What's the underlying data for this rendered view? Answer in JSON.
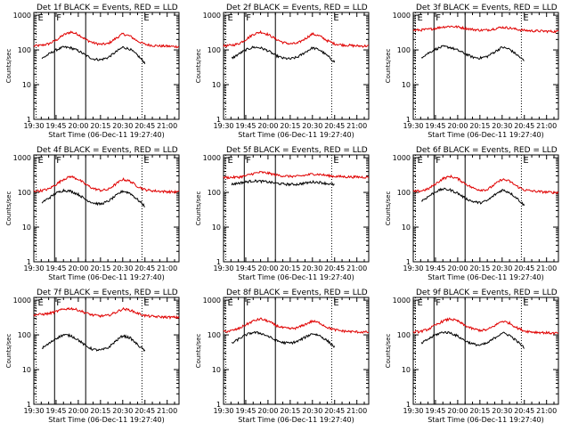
{
  "figure": {
    "colors": {
      "events": "#000000",
      "lld": "#e00000",
      "axes": "#000000",
      "background": "#ffffff"
    },
    "x_tick_labels": [
      "19:30",
      "19:45",
      "20:00",
      "20:15",
      "20:30",
      "20:45",
      "21:00"
    ],
    "x_tick_minutes": [
      0,
      15,
      30,
      45,
      60,
      75,
      90
    ],
    "x_range_minutes": [
      0,
      98
    ],
    "y_tick_labels": [
      "1",
      "10",
      "100",
      "1000"
    ],
    "y_tick_values": [
      1,
      10,
      100,
      1000
    ],
    "y_range": [
      1,
      1200
    ],
    "y_scale": "log",
    "ylabel": "Counts/sec",
    "xlabel": "Start Time (06-Dec-11 19:27:40)",
    "markers": [
      {
        "label": "E",
        "minute": 1.5,
        "style": "dotted"
      },
      {
        "label": "F",
        "minute": 14,
        "style": "solid"
      },
      {
        "label": "",
        "minute": 35,
        "style": "solid"
      },
      {
        "label": "E",
        "minute": 73,
        "style": "dotted"
      }
    ]
  },
  "chart_data": [
    {
      "type": "line",
      "title": "Det 1f BLACK = Events, RED = LLD",
      "ylabel": "Counts/sec",
      "xlabel": "Start Time (06-Dec-11 19:27:40)",
      "y_scale": "log",
      "ylim": [
        1,
        1200
      ],
      "x": [
        0,
        5,
        10,
        15,
        20,
        25,
        30,
        35,
        40,
        45,
        50,
        55,
        60,
        65,
        70,
        75,
        80,
        85,
        90,
        95,
        98
      ],
      "series": [
        {
          "name": "RED = LLD",
          "color": "#e00000",
          "values": [
            130,
            135,
            150,
            190,
            270,
            330,
            280,
            200,
            160,
            145,
            150,
            210,
            290,
            250,
            180,
            145,
            135,
            130,
            128,
            125,
            125
          ]
        },
        {
          "name": "BLACK = Events",
          "color": "#000000",
          "values": [
            null,
            55,
            75,
            100,
            120,
            115,
            95,
            70,
            55,
            52,
            60,
            85,
            120,
            105,
            70,
            42,
            null,
            null,
            null,
            null,
            null
          ]
        }
      ]
    },
    {
      "type": "line",
      "title": "Det 2f BLACK = Events, RED = LLD",
      "ylabel": "Counts/sec",
      "xlabel": "Start Time (06-Dec-11 19:27:40)",
      "y_scale": "log",
      "ylim": [
        1,
        1200
      ],
      "x": [
        0,
        5,
        10,
        15,
        20,
        25,
        30,
        35,
        40,
        45,
        50,
        55,
        60,
        65,
        70,
        75,
        80,
        85,
        90,
        95,
        98
      ],
      "series": [
        {
          "name": "RED = LLD",
          "color": "#e00000",
          "values": [
            130,
            135,
            150,
            200,
            280,
            330,
            280,
            210,
            165,
            150,
            155,
            210,
            290,
            250,
            185,
            150,
            140,
            135,
            130,
            130,
            130
          ]
        },
        {
          "name": "BLACK = Events",
          "color": "#000000",
          "values": [
            null,
            55,
            75,
            100,
            120,
            115,
            95,
            70,
            58,
            55,
            62,
            85,
            115,
            100,
            68,
            45,
            null,
            null,
            null,
            null,
            null
          ]
        }
      ]
    },
    {
      "type": "line",
      "title": "Det 3f BLACK = Events, RED = LLD",
      "ylabel": "Counts/sec",
      "xlabel": "Start Time (06-Dec-11 19:27:40)",
      "y_scale": "log",
      "ylim": [
        1,
        1200
      ],
      "x": [
        0,
        5,
        10,
        15,
        20,
        25,
        30,
        35,
        40,
        45,
        50,
        55,
        60,
        65,
        70,
        75,
        80,
        85,
        90,
        95,
        98
      ],
      "series": [
        {
          "name": "RED = LLD",
          "color": "#e00000",
          "values": [
            370,
            375,
            390,
            420,
            460,
            480,
            460,
            420,
            390,
            370,
            375,
            410,
            450,
            430,
            390,
            365,
            355,
            350,
            345,
            340,
            340
          ]
        },
        {
          "name": "BLACK = Events",
          "color": "#000000",
          "values": [
            null,
            60,
            80,
            105,
            125,
            118,
            98,
            78,
            62,
            58,
            65,
            88,
            120,
            105,
            72,
            48,
            null,
            null,
            null,
            null,
            null
          ]
        }
      ]
    },
    {
      "type": "line",
      "title": "Det 4f BLACK = Events, RED = LLD",
      "ylabel": "Counts/sec",
      "xlabel": "Start Time (06-Dec-11 19:27:40)",
      "y_scale": "log",
      "ylim": [
        1,
        1200
      ],
      "x": [
        0,
        5,
        10,
        15,
        20,
        25,
        30,
        35,
        40,
        45,
        50,
        55,
        60,
        65,
        70,
        75,
        80,
        85,
        90,
        95,
        98
      ],
      "series": [
        {
          "name": "RED = LLD",
          "color": "#e00000",
          "values": [
            110,
            112,
            125,
            170,
            240,
            290,
            240,
            170,
            130,
            115,
            120,
            170,
            240,
            210,
            150,
            120,
            112,
            108,
            105,
            103,
            103
          ]
        },
        {
          "name": "BLACK = Events",
          "color": "#000000",
          "values": [
            null,
            50,
            68,
            95,
            115,
            108,
            88,
            62,
            50,
            46,
            55,
            78,
            110,
            95,
            62,
            40,
            null,
            null,
            null,
            null,
            null
          ]
        }
      ]
    },
    {
      "type": "line",
      "title": "Det 5f BLACK = Events, RED = LLD",
      "ylabel": "Counts/sec",
      "xlabel": "Start Time (06-Dec-11 19:27:40)",
      "y_scale": "log",
      "ylim": [
        1,
        1200
      ],
      "x": [
        0,
        5,
        10,
        15,
        20,
        25,
        30,
        35,
        40,
        45,
        50,
        55,
        60,
        65,
        70,
        75,
        80,
        85,
        90,
        95,
        98
      ],
      "series": [
        {
          "name": "RED = LLD",
          "color": "#e00000",
          "values": [
            270,
            270,
            275,
            300,
            350,
            380,
            360,
            320,
            300,
            290,
            290,
            310,
            340,
            330,
            305,
            290,
            285,
            280,
            278,
            275,
            275
          ]
        },
        {
          "name": "BLACK = Events",
          "color": "#000000",
          "values": [
            null,
            170,
            185,
            200,
            215,
            210,
            200,
            185,
            175,
            170,
            172,
            185,
            200,
            195,
            180,
            165,
            null,
            null,
            null,
            null,
            null
          ]
        }
      ]
    },
    {
      "type": "line",
      "title": "Det 6f BLACK = Events, RED = LLD",
      "ylabel": "Counts/sec",
      "xlabel": "Start Time (06-Dec-11 19:27:40)",
      "y_scale": "log",
      "ylim": [
        1,
        1200
      ],
      "x": [
        0,
        5,
        10,
        15,
        20,
        25,
        30,
        35,
        40,
        45,
        50,
        55,
        60,
        65,
        70,
        75,
        80,
        85,
        90,
        95,
        98
      ],
      "series": [
        {
          "name": "RED = LLD",
          "color": "#e00000",
          "values": [
            105,
            110,
            125,
            175,
            250,
            290,
            250,
            180,
            135,
            118,
            120,
            170,
            240,
            210,
            150,
            118,
            110,
            105,
            102,
            100,
            100
          ]
        },
        {
          "name": "BLACK = Events",
          "color": "#000000",
          "values": [
            null,
            55,
            75,
            105,
            125,
            118,
            95,
            68,
            55,
            50,
            58,
            85,
            118,
            100,
            68,
            42,
            null,
            null,
            null,
            null,
            null
          ]
        }
      ]
    },
    {
      "type": "line",
      "title": "Det 7f BLACK = Events, RED = LLD",
      "ylabel": "Counts/sec",
      "xlabel": "Start Time (06-Dec-11 19:27:40)",
      "y_scale": "log",
      "ylim": [
        1,
        1200
      ],
      "x": [
        0,
        5,
        10,
        15,
        20,
        25,
        30,
        35,
        40,
        45,
        50,
        55,
        60,
        65,
        70,
        75,
        80,
        85,
        90,
        95,
        98
      ],
      "series": [
        {
          "name": "RED = LLD",
          "color": "#e00000",
          "values": [
            380,
            390,
            410,
            470,
            550,
            580,
            520,
            430,
            370,
            350,
            360,
            440,
            560,
            520,
            420,
            360,
            340,
            330,
            325,
            320,
            320
          ]
        },
        {
          "name": "BLACK = Events",
          "color": "#000000",
          "values": [
            null,
            40,
            55,
            80,
            100,
            95,
            72,
            48,
            38,
            36,
            42,
            65,
            95,
            82,
            52,
            35,
            null,
            null,
            null,
            null,
            null
          ]
        }
      ]
    },
    {
      "type": "line",
      "title": "Det 8f BLACK = Events, RED = LLD",
      "ylabel": "Counts/sec",
      "xlabel": "Start Time (06-Dec-11 19:27:40)",
      "y_scale": "log",
      "ylim": [
        1,
        1200
      ],
      "x": [
        0,
        5,
        10,
        15,
        20,
        25,
        30,
        35,
        40,
        45,
        50,
        55,
        60,
        65,
        70,
        75,
        80,
        85,
        90,
        95,
        98
      ],
      "series": [
        {
          "name": "RED = LLD",
          "color": "#e00000",
          "values": [
            125,
            130,
            150,
            195,
            250,
            290,
            250,
            190,
            160,
            150,
            160,
            200,
            250,
            220,
            165,
            140,
            130,
            125,
            122,
            120,
            120
          ]
        },
        {
          "name": "BLACK = Events",
          "color": "#000000",
          "values": [
            null,
            55,
            75,
            100,
            118,
            112,
            92,
            70,
            60,
            58,
            65,
            85,
            110,
            95,
            68,
            45,
            null,
            null,
            null,
            null,
            null
          ]
        }
      ]
    },
    {
      "type": "line",
      "title": "Det 9f BLACK = Events, RED = LLD",
      "ylabel": "Counts/sec",
      "xlabel": "Start Time (06-Dec-11 19:27:40)",
      "y_scale": "log",
      "ylim": [
        1,
        1200
      ],
      "x": [
        0,
        5,
        10,
        15,
        20,
        25,
        30,
        35,
        40,
        45,
        50,
        55,
        60,
        65,
        70,
        75,
        80,
        85,
        90,
        95,
        98
      ],
      "series": [
        {
          "name": "RED = LLD",
          "color": "#e00000",
          "values": [
            120,
            125,
            145,
            190,
            250,
            290,
            250,
            185,
            150,
            135,
            140,
            185,
            250,
            220,
            160,
            130,
            122,
            118,
            115,
            112,
            112
          ]
        },
        {
          "name": "BLACK = Events",
          "color": "#000000",
          "values": [
            null,
            55,
            75,
            100,
            120,
            115,
            92,
            68,
            55,
            50,
            58,
            82,
            115,
            98,
            66,
            42,
            null,
            null,
            null,
            null,
            null
          ]
        }
      ]
    }
  ]
}
